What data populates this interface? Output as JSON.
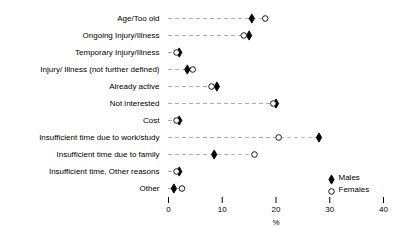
{
  "chart_data": {
    "type": "dot",
    "orientation": "horizontal",
    "categories": [
      "Age/Too old",
      "Ongoing Injury/Illness",
      "Temporary Injury/Illness",
      "Injury/ Illness (not further defined)",
      "Already active",
      "Not interested",
      "Cost",
      "Insufficient time due to work/study",
      "Insufficient time due to family",
      "Insufficient time, Other reasons",
      "Other"
    ],
    "series": [
      {
        "name": "Males",
        "color": "black",
        "marker": "diamond",
        "values": [
          15.5,
          15.0,
          2.0,
          3.5,
          9.0,
          20.0,
          2.0,
          28.0,
          8.5,
          2.0,
          1.0
        ]
      },
      {
        "name": "Females",
        "color": "black",
        "marker": "circle",
        "values": [
          18.0,
          14.0,
          1.5,
          4.5,
          8.0,
          19.5,
          1.5,
          20.5,
          16.0,
          1.5,
          2.5
        ]
      }
    ],
    "color": "#aaaaaa",
    "line_style": "dashed",
    "xlabel": "%",
    "xlim": [
      0,
      40
    ],
    "xticks": [
      0,
      10,
      20,
      30,
      40
    ],
    "legend": "lower right",
    "grid": false
  }
}
